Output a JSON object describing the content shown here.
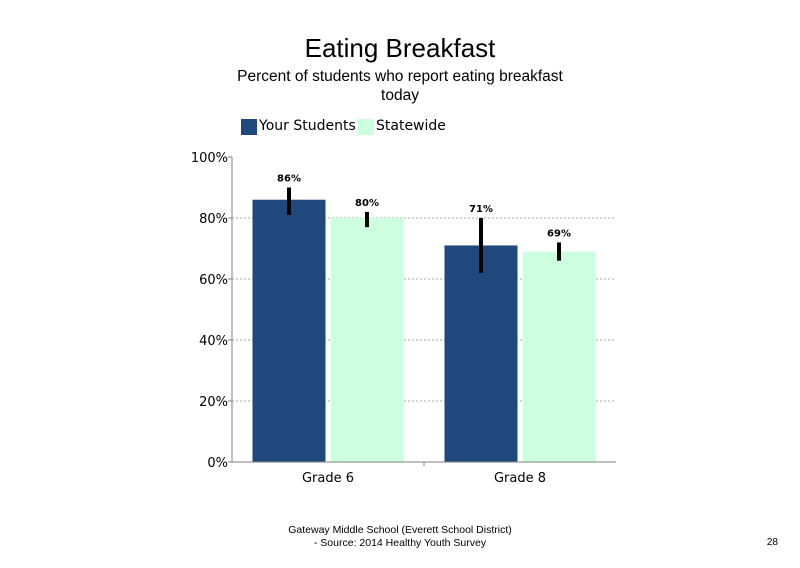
{
  "title": "Eating Breakfast",
  "subtitle": "Percent of students who report eating breakfast today",
  "footer": {
    "line1": "Gateway Middle School (Everett School District)",
    "line2": "- Source: 2014 Healthy Youth Survey"
  },
  "page_number": "28",
  "chart_data": {
    "type": "bar",
    "categories": [
      "Grade 6",
      "Grade 8"
    ],
    "series": [
      {
        "name": "Your Students",
        "color": "#1f497d",
        "values": [
          86,
          71
        ],
        "labels": [
          "86%",
          "71%"
        ],
        "error_low": [
          81,
          62
        ],
        "error_high": [
          90,
          80
        ]
      },
      {
        "name": "Statewide",
        "color": "#ccffdd",
        "values": [
          80,
          69
        ],
        "labels": [
          "80%",
          "69%"
        ],
        "error_low": [
          77,
          66
        ],
        "error_high": [
          82,
          72
        ]
      }
    ],
    "ylim": [
      0,
      100
    ],
    "yticks": [
      0,
      20,
      40,
      60,
      80,
      100
    ],
    "ytick_labels": [
      "0%",
      "20%",
      "40%",
      "60%",
      "80%",
      "100%"
    ],
    "grid": true,
    "legend_position": "top-left"
  }
}
